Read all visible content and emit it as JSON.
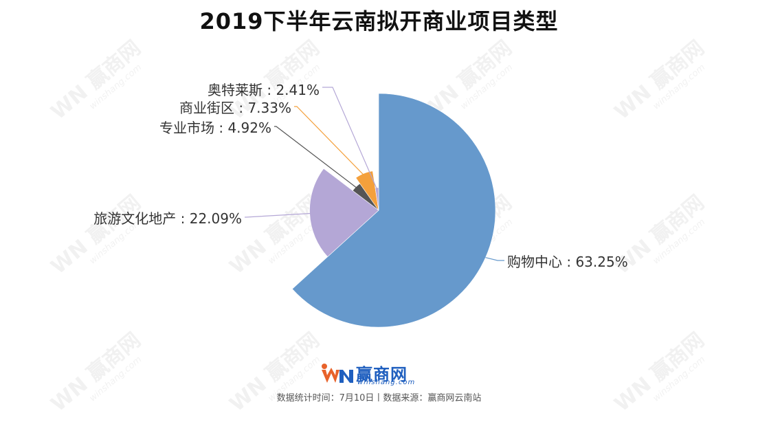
{
  "brand": {
    "name": "赢商网",
    "domain": "winshang.com",
    "watermark_text": "赢商网",
    "watermark_domain": "winshang.com"
  },
  "footer": {
    "note": "数据统计时间：7月10日丨数据来源：赢商网云南站"
  },
  "chart_data": {
    "type": "pie",
    "title": "2019下半年云南拟开商业项目类型",
    "slices": [
      {
        "name": "购物中心",
        "value": 63.25,
        "label": "购物中心 : 63.25%",
        "color": "#6699cc"
      },
      {
        "name": "旅游文化地产",
        "value": 22.09,
        "label": "旅游文化地产 : 22.09%",
        "color": "#b4a7d6"
      },
      {
        "name": "专业市场",
        "value": 4.92,
        "label": "专业市场 : 4.92%",
        "color": "#555555"
      },
      {
        "name": "商业街区",
        "value": 7.33,
        "label": "商业街区 : 7.33%",
        "color": "#f4a03c"
      },
      {
        "name": "奥特莱斯",
        "value": 2.41,
        "label": "奥特莱斯 : 2.41%",
        "color": "#b4a7d6"
      }
    ],
    "legend": "none",
    "labels": "outside with leader lines"
  }
}
